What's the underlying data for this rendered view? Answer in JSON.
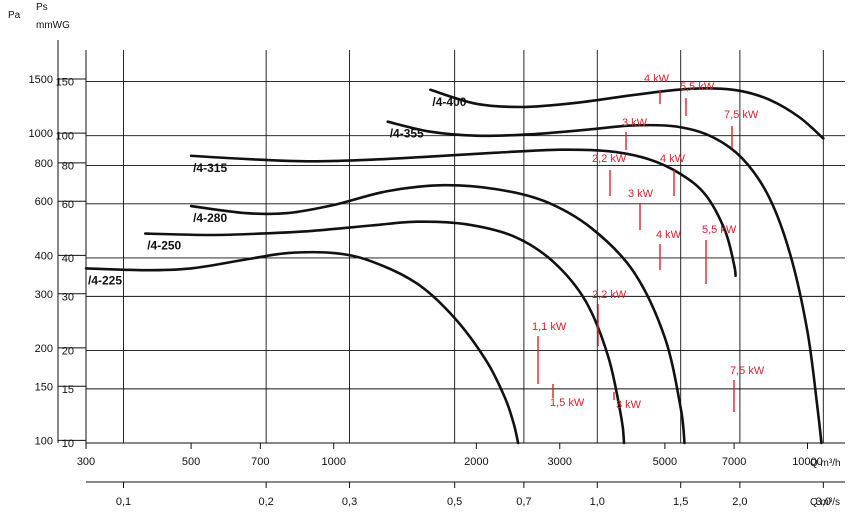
{
  "chart_data": {
    "type": "line",
    "units": {
      "left_outer": "Pa",
      "left_inner_symbol": "Ps",
      "left_inner_unit": "mmWG",
      "bottom": "Q m³/h",
      "bottom2": "Q m³/s"
    },
    "x_scale": "log",
    "y_scale": "log",
    "xlim": [
      300,
      12000
    ],
    "ylim": [
      10,
      190
    ],
    "x_ticks": [
      300,
      500,
      700,
      1000,
      2000,
      3000,
      5000,
      7000,
      10000
    ],
    "x_tick_labels": [
      "300",
      "500",
      "700",
      "1000",
      "2000",
      "3000",
      "5000",
      "7000",
      "10000"
    ],
    "x2_ticks": [
      0.1,
      0.2,
      0.3,
      0.5,
      0.7,
      1.0,
      1.5,
      2.0,
      3.0
    ],
    "x2_tick_labels": [
      "0,1",
      "0,2",
      "0,3",
      "0,5",
      "0,7",
      "1,0",
      "1,5",
      "2,0",
      "3,0"
    ],
    "y_ticks_mmwg": [
      10,
      15,
      20,
      30,
      40,
      60,
      80,
      100,
      150
    ],
    "y_ticks_pa": [
      100,
      150,
      200,
      300,
      400,
      600,
      800,
      1000,
      1500
    ],
    "grid": true,
    "series": [
      {
        "name": "/4-225",
        "x": [
          300,
          400,
          500,
          650,
          800,
          1000,
          1200,
          1500,
          1800,
          2100,
          2300,
          2400,
          2450
        ],
        "y": [
          37,
          36.5,
          37,
          39.5,
          41.5,
          41.5,
          39,
          33,
          25.5,
          18.5,
          14,
          11.5,
          10
        ]
      },
      {
        "name": "/4-250",
        "x": [
          400,
          550,
          700,
          900,
          1200,
          1500,
          1900,
          2400,
          2900,
          3400,
          3800,
          4050,
          4100
        ],
        "y": [
          48,
          47.5,
          48,
          49,
          51,
          52.5,
          51.5,
          47,
          39,
          29,
          19,
          12,
          10
        ]
      },
      {
        "name": "/4-280",
        "x": [
          500,
          650,
          800,
          1000,
          1300,
          1700,
          2200,
          2800,
          3500,
          4300,
          5000,
          5400,
          5500
        ],
        "y": [
          59,
          56,
          56,
          59.5,
          66,
          69,
          67,
          61,
          50,
          36,
          22,
          13,
          10
        ]
      },
      {
        "name": "/4-315",
        "x": [
          500,
          700,
          900,
          1200,
          1600,
          2200,
          3000,
          3800,
          4600,
          5400,
          6100,
          6700,
          7000,
          7050
        ],
        "y": [
          86,
          83.5,
          82.5,
          83.5,
          85.5,
          88,
          90,
          89,
          84,
          75,
          64,
          49,
          38,
          35
        ]
      },
      {
        "name": "/4-355",
        "x": [
          1300,
          1600,
          2000,
          2600,
          3400,
          4300,
          5300,
          6300,
          7300,
          8300,
          9200,
          10000,
          10500,
          10700
        ],
        "y": [
          111,
          103,
          100,
          101,
          104.5,
          108,
          107,
          99,
          84,
          63,
          41,
          23,
          13,
          10
        ]
      },
      {
        "name": "/4-400",
        "x": [
          1600,
          2000,
          2500,
          3200,
          4200,
          5300,
          6300,
          7200,
          8300,
          9600,
          10800
        ],
        "y": [
          141,
          127,
          124,
          127.5,
          135,
          141,
          142.5,
          140,
          131,
          115,
          98
        ]
      }
    ],
    "annotations": [
      {
        "text": "4 kW",
        "color": "#e0202a"
      },
      {
        "text": "5,5 kW",
        "color": "#e0202a"
      },
      {
        "text": "7,5 kW",
        "color": "#e0202a"
      },
      {
        "text": "3 kW",
        "color": "#e0202a"
      },
      {
        "text": "2,2 kW",
        "color": "#e0202a"
      },
      {
        "text": "4 kW",
        "color": "#e0202a"
      },
      {
        "text": "3 kW",
        "color": "#e0202a"
      },
      {
        "text": "4 kW",
        "color": "#e0202a"
      },
      {
        "text": "5,5 kW",
        "color": "#e0202a"
      },
      {
        "text": "2,2 kW",
        "color": "#e0202a"
      },
      {
        "text": "1,1 kW",
        "color": "#e0202a"
      },
      {
        "text": "7,5 kW",
        "color": "#e0202a"
      },
      {
        "text": "1,5 kW",
        "color": "#e0202a"
      },
      {
        "text": "3 kW",
        "color": "#e0202a"
      }
    ]
  }
}
